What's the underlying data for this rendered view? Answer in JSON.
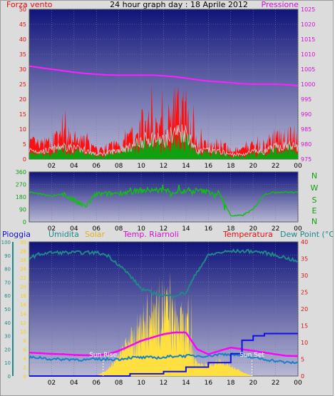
{
  "header": {
    "wind_title": "Forza vento",
    "date_title": "24 hour graph day : 18 Aprile 2012",
    "pressure_title": "Pressione"
  },
  "compass": [
    "N",
    "W",
    "S",
    "E",
    "N"
  ],
  "legend": {
    "rain": "Pioggia",
    "humidity": "Umidita",
    "solar": "Solar",
    "heat": "Temp. Riarnoli",
    "temperature": "Temperatura",
    "dewpoint": "Dew Point (°C)"
  },
  "annotations": {
    "sunrise": "Sun Rise",
    "sunset": "Sun Set"
  },
  "colors": {
    "plot_bg_top": "#10147a",
    "plot_bg_bottom": "#b8b8d4",
    "wind_gust": "#ff1010",
    "wind_avg": "#10a010",
    "wind_line": "#c8c8c8",
    "pressure": "#ff20ff",
    "direction": "#10c010",
    "rain": "#1010e0",
    "humidity": "#208888",
    "solar": "#ffe040",
    "heat": "#ff00ff",
    "temperature": "#e01010",
    "dewpoint": "#1880c8"
  },
  "chart_data": [
    {
      "type": "area",
      "title": "Forza vento",
      "x_ticks": [
        "02",
        "04",
        "06",
        "08",
        "10",
        "12",
        "14",
        "16",
        "18",
        "20",
        "22",
        "00"
      ],
      "ylim_left": [
        0,
        50
      ],
      "y_ticks_left": [
        0,
        5,
        10,
        15,
        20,
        25,
        30,
        35,
        40,
        45,
        50
      ],
      "ylim_right": [
        975,
        1025
      ],
      "y_ticks_right": [
        975,
        980,
        985,
        990,
        995,
        1000,
        1005,
        1010,
        1015,
        1020,
        1025
      ],
      "series": [
        {
          "name": "Forza vento",
          "axis": "left",
          "x": [
            0,
            1,
            2,
            3,
            4,
            5,
            6,
            7,
            8,
            9,
            10,
            11,
            12,
            13,
            14,
            15,
            16,
            17,
            18,
            19,
            20,
            21,
            22,
            23,
            24
          ],
          "values": [
            6,
            5,
            6,
            9,
            7,
            6,
            3,
            4,
            6,
            8,
            12,
            14,
            12,
            18,
            18,
            5,
            6,
            5,
            3,
            3,
            5,
            5,
            8,
            9,
            8
          ]
        },
        {
          "name": "Pressione",
          "axis": "right",
          "x": [
            0,
            1,
            2,
            3,
            4,
            5,
            6,
            7,
            8,
            9,
            10,
            11,
            12,
            13,
            14,
            15,
            16,
            17,
            18,
            19,
            20,
            21,
            22,
            23,
            24
          ],
          "values": [
            1006,
            1005.5,
            1005,
            1004.5,
            1004,
            1003.6,
            1003.3,
            1003.1,
            1003,
            1003,
            1003,
            1003,
            1002.8,
            1002.5,
            1002,
            1001.5,
            1001,
            1000.8,
            1000.5,
            1000.2,
            1000,
            1000,
            1000,
            999.8,
            999.5
          ]
        }
      ]
    },
    {
      "type": "line",
      "x_ticks": [
        "02",
        "04",
        "06",
        "08",
        "10",
        "12",
        "14",
        "16",
        "18",
        "20",
        "22",
        "00"
      ],
      "ylim": [
        0,
        360
      ],
      "y_ticks": [
        0,
        90,
        180,
        270,
        360
      ],
      "series": [
        {
          "name": "direction",
          "x": [
            0,
            1,
            2,
            3,
            4,
            5,
            6,
            7,
            8,
            9,
            10,
            11,
            12,
            13,
            14,
            15,
            16,
            17,
            18,
            19,
            20,
            21,
            22,
            23,
            24
          ],
          "values": [
            215,
            200,
            185,
            205,
            150,
            110,
            200,
            200,
            210,
            215,
            225,
            230,
            225,
            215,
            220,
            225,
            215,
            205,
            45,
            45,
            90,
            200,
            215,
            215,
            210
          ]
        }
      ]
    },
    {
      "type": "line",
      "x_ticks": [
        "02",
        "04",
        "06",
        "08",
        "10",
        "12",
        "14",
        "16",
        "18",
        "20",
        "22",
        "00"
      ],
      "ylim_left": [
        0,
        100
      ],
      "y_ticks_left": [
        0,
        10,
        20,
        30,
        40,
        50,
        60,
        70,
        80,
        90,
        100
      ],
      "ylim_rain": [
        0,
        30
      ],
      "y_ticks_rain": [
        0,
        2,
        4,
        6,
        8,
        10,
        12,
        14,
        16,
        18,
        20,
        22,
        24,
        26,
        28,
        30
      ],
      "ylim_right": [
        0,
        40
      ],
      "y_ticks_right": [
        0,
        5,
        10,
        15,
        20,
        25,
        30,
        35,
        40
      ],
      "series": [
        {
          "name": "Pioggia",
          "axis": "rain",
          "x": [
            0,
            3,
            6,
            9,
            12,
            14,
            15,
            16,
            18,
            19,
            20,
            21,
            22,
            24
          ],
          "values": [
            0,
            0,
            0,
            0.5,
            1,
            2,
            2,
            3,
            5,
            8,
            9,
            9.5,
            9.5,
            9.5
          ]
        },
        {
          "name": "Umidita",
          "axis": "left",
          "x": [
            0,
            1,
            2,
            3,
            4,
            5,
            6,
            7,
            8,
            9,
            10,
            11,
            12,
            13,
            14,
            15,
            16,
            17,
            18,
            19,
            20,
            21,
            22,
            23,
            24
          ],
          "values": [
            88,
            91,
            92,
            92,
            92,
            92,
            92,
            90,
            83,
            75,
            65,
            62,
            60,
            60,
            62,
            78,
            90,
            92,
            93,
            93,
            93,
            92,
            90,
            88,
            85
          ]
        },
        {
          "name": "Solar",
          "axis": "left",
          "x": [
            6,
            7,
            8,
            9,
            10,
            11,
            12,
            13,
            14,
            15,
            16,
            17,
            18,
            19,
            20
          ],
          "values": [
            0,
            5,
            15,
            30,
            45,
            60,
            65,
            50,
            45,
            10,
            8,
            12,
            8,
            3,
            0
          ]
        },
        {
          "name": "Temp. Riarnoli",
          "axis": "right",
          "x": [
            0,
            1,
            2,
            3,
            4,
            5,
            6,
            7,
            8,
            9,
            10,
            11,
            12,
            13,
            14,
            15,
            16,
            17,
            18,
            19,
            20,
            21,
            22,
            23,
            24
          ],
          "values": [
            7,
            6.8,
            6.6,
            6.5,
            6.3,
            6.2,
            6.2,
            6.5,
            7.5,
            9,
            10.5,
            11.5,
            12.5,
            13,
            13,
            8,
            6.5,
            7.5,
            8.5,
            8,
            7.5,
            7,
            6.5,
            6,
            6
          ]
        },
        {
          "name": "Temperatura",
          "axis": "right",
          "x": [
            0,
            1,
            2,
            3,
            4,
            5,
            6,
            7,
            8,
            9,
            10,
            11,
            12,
            13,
            14,
            15,
            16,
            17,
            18,
            19,
            20,
            21,
            22,
            23,
            24
          ],
          "values": [
            7,
            6.8,
            6.6,
            6.5,
            6.3,
            6.2,
            6.2,
            6.5,
            7.5,
            9,
            10.5,
            11.5,
            12.5,
            13,
            13,
            8,
            6.5,
            7.5,
            8.5,
            8,
            7.5,
            7,
            6.5,
            6,
            6
          ]
        },
        {
          "name": "Dew Point (°C)",
          "axis": "right",
          "x": [
            0,
            1,
            2,
            3,
            4,
            5,
            6,
            7,
            8,
            9,
            10,
            11,
            12,
            13,
            14,
            15,
            16,
            17,
            18,
            19,
            20,
            21,
            22,
            23,
            24
          ],
          "values": [
            5.5,
            5.5,
            5,
            5,
            5,
            4.8,
            5,
            5,
            5,
            5.5,
            5.5,
            5.5,
            5.5,
            6,
            6,
            6,
            6,
            6.5,
            6.5,
            6,
            5.5,
            5,
            4.5,
            4,
            4
          ]
        }
      ]
    }
  ]
}
